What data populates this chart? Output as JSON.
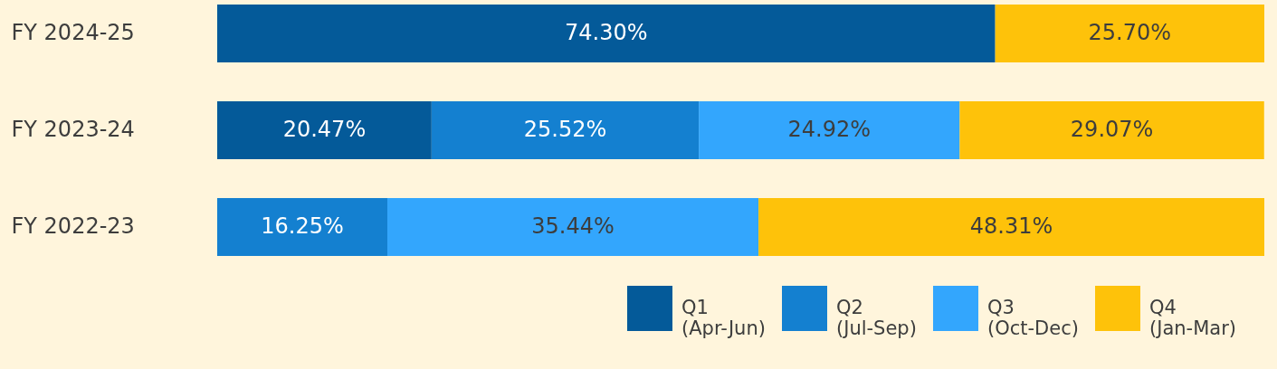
{
  "chart_data": {
    "type": "bar",
    "orientation": "horizontal",
    "stacked": true,
    "legend": "bottom right",
    "xlim": [
      0,
      100
    ],
    "categories": [
      "FY 2024-25",
      "FY 2023-24",
      "FY 2022-23"
    ],
    "series": [
      {
        "name": "Q1\n(Apr-Jun)",
        "color": "#045a99",
        "values": [
          74.3,
          20.47,
          null
        ],
        "value_labels": [
          "74.30%",
          "20.47%",
          null
        ]
      },
      {
        "name": "Q2\n(Jul-Sep)",
        "color": "#1480d0",
        "values": [
          null,
          25.52,
          16.25
        ],
        "value_labels": [
          null,
          "25.52%",
          "16.25%"
        ]
      },
      {
        "name": "Q3\n(Oct-Dec)",
        "color": "#33a6fd",
        "values": [
          null,
          24.92,
          35.44
        ],
        "value_labels": [
          null,
          "24.92%",
          "35.44%"
        ]
      },
      {
        "name": "Q4\n(Jan-Mar)",
        "color": "#fec20a",
        "values": [
          25.7,
          29.07,
          48.31
        ],
        "value_labels": [
          "25.70%",
          "29.07%",
          "48.31%"
        ]
      }
    ]
  }
}
